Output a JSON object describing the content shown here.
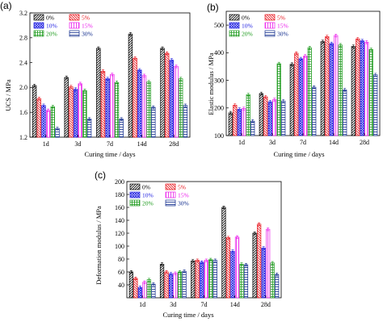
{
  "chart_data": [
    {
      "panel": "(a)",
      "type": "bar",
      "ylabel": "UCS / MPa",
      "xlabel": "Curing time / days",
      "categories": [
        "1d",
        "3d",
        "7d",
        "14d",
        "28d"
      ],
      "ylim": [
        1.2,
        3.2
      ],
      "yticks": [
        "1.2",
        "1.6",
        "2.0",
        "2.4",
        "2.8",
        "3.2"
      ],
      "series": [
        {
          "name": "0%",
          "values": [
            2.03,
            2.16,
            2.63,
            2.86,
            2.63
          ]
        },
        {
          "name": "5%",
          "values": [
            1.82,
            2.01,
            2.26,
            2.47,
            2.55
          ]
        },
        {
          "name": "10%",
          "values": [
            1.71,
            1.97,
            2.14,
            2.28,
            2.44
          ]
        },
        {
          "name": "15%",
          "values": [
            1.63,
            2.06,
            2.21,
            2.19,
            2.34
          ]
        },
        {
          "name": "20%",
          "values": [
            1.69,
            1.95,
            2.08,
            2.09,
            2.14
          ]
        },
        {
          "name": "30%",
          "values": [
            1.34,
            1.49,
            1.49,
            1.68,
            1.71
          ]
        }
      ]
    },
    {
      "panel": "(b)",
      "type": "bar",
      "ylabel": "Elastic modulus / MPa",
      "xlabel": "Curing time / days",
      "categories": [
        "1d",
        "3d",
        "7d",
        "14d",
        "28d"
      ],
      "ylim": [
        100,
        550
      ],
      "yticks": [
        "100",
        "200",
        "300",
        "400",
        "500"
      ],
      "series": [
        {
          "name": "0%",
          "values": [
            182,
            252,
            358,
            440,
            423
          ]
        },
        {
          "name": "5%",
          "values": [
            210,
            240,
            398,
            458,
            450
          ]
        },
        {
          "name": "10%",
          "values": [
            195,
            222,
            378,
            433,
            443
          ]
        },
        {
          "name": "15%",
          "values": [
            198,
            230,
            388,
            462,
            438
          ]
        },
        {
          "name": "20%",
          "values": [
            248,
            360,
            418,
            428,
            412
          ]
        },
        {
          "name": "30%",
          "values": [
            152,
            225,
            275,
            265,
            320
          ]
        }
      ]
    },
    {
      "panel": "(c)",
      "type": "bar",
      "ylabel": "Deformation modulus / MPa",
      "xlabel": "Curing time / days",
      "categories": [
        "1d",
        "3d",
        "7d",
        "14d",
        "28d"
      ],
      "ylim": [
        20,
        200
      ],
      "yticks": [
        "40",
        "60",
        "80",
        "100",
        "120",
        "140",
        "160",
        "180",
        "200"
      ],
      "series": [
        {
          "name": "0%",
          "values": [
            60,
            72,
            77,
            160,
            120
          ]
        },
        {
          "name": "5%",
          "values": [
            50,
            60,
            78,
            113,
            134
          ]
        },
        {
          "name": "10%",
          "values": [
            36,
            57,
            75,
            92,
            97
          ]
        },
        {
          "name": "15%",
          "values": [
            44,
            58,
            78,
            114,
            126
          ]
        },
        {
          "name": "20%",
          "values": [
            48,
            60,
            79,
            72,
            74
          ]
        },
        {
          "name": "30%",
          "values": [
            41,
            61,
            78,
            71,
            56
          ]
        }
      ]
    }
  ],
  "styles": {
    "colors": [
      "#000000",
      "#e8131b",
      "#1b1be0",
      "#ea1aea",
      "#1c9a1c",
      "#0f2a8c"
    ],
    "patterns": [
      "diag-right",
      "diag-left",
      "cross",
      "vertical",
      "grid",
      "horizontal"
    ]
  }
}
